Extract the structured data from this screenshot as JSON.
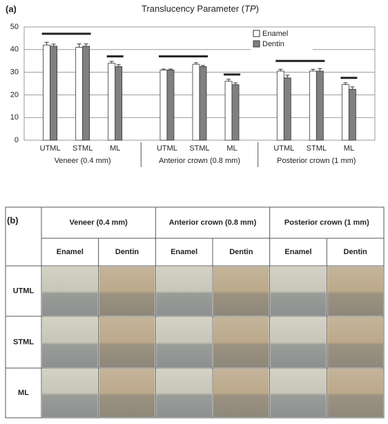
{
  "chart_data": {
    "type": "bar",
    "panel_label": "(a)",
    "title": [
      "Translucency Parameter (",
      "TP",
      ")"
    ],
    "categories": [
      "UTML",
      "STML",
      "ML",
      "UTML",
      "STML",
      "ML",
      "UTML",
      "STML",
      "ML"
    ],
    "groups": [
      {
        "name": "Veneer (0.4 mm)",
        "long_line": 47,
        "short_line": 37
      },
      {
        "name": "Anterior crown (0.8 mm)",
        "long_line": 37,
        "short_line": 29
      },
      {
        "name": "Posterior crown (1 mm)",
        "long_line": 35,
        "short_line": 27.5
      }
    ],
    "series": [
      {
        "name": "Enamel",
        "color": "#ffffff",
        "values": [
          42,
          41,
          34,
          31,
          33.5,
          26,
          30.5,
          30.5,
          24.5
        ],
        "errors": [
          1.2,
          1.5,
          0.8,
          0.4,
          0.7,
          0.9,
          0.8,
          0.8,
          0.8
        ]
      },
      {
        "name": "Dentin",
        "color": "#808080",
        "values": [
          41.5,
          41.5,
          32.5,
          31,
          32.5,
          24.5,
          27.5,
          30.5,
          22.5
        ],
        "errors": [
          0.9,
          1.0,
          0.8,
          0.4,
          0.5,
          0.8,
          1.2,
          1.1,
          1.0
        ]
      }
    ],
    "ylim": [
      0,
      50
    ],
    "yticks": [
      0,
      10,
      20,
      30,
      40,
      50
    ],
    "grid": true,
    "legend": "top right"
  },
  "table": {
    "panel_label": "(b)",
    "column_groups": [
      "Veneer (0.4 mm)",
      "Anterior crown (0.8 mm)",
      "Posterior crown (1 mm)"
    ],
    "sub_headers": [
      "Enamel",
      "Dentin",
      "Enamel",
      "Dentin",
      "Enamel",
      "Dentin"
    ],
    "rows": [
      "UTML",
      "STML",
      "ML"
    ]
  }
}
